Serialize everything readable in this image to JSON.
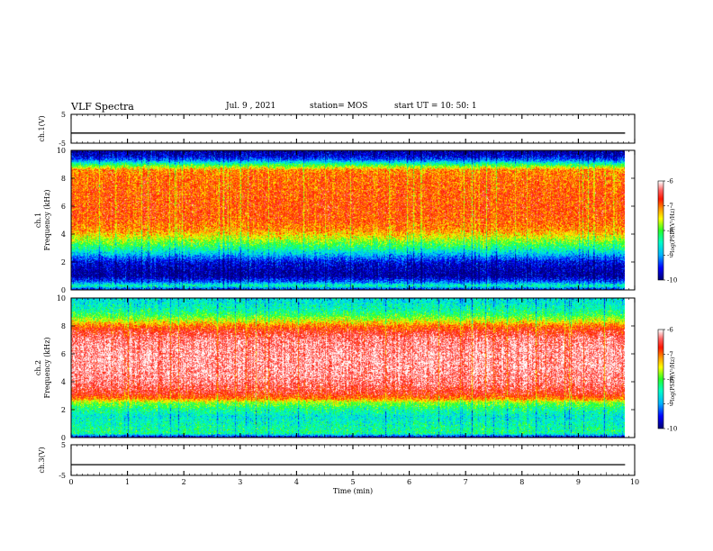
{
  "header": {
    "title": "VLF Spectra",
    "date": "Jul. 9 , 2021",
    "station": "station= MOS",
    "start": "start UT = 10: 50: 1"
  },
  "chart_data": [
    {
      "type": "line",
      "panel": "ch.1(V)",
      "ylabel": "ch.1(V)",
      "yticks": [
        "5",
        "-5"
      ],
      "ylim": [
        -5,
        5
      ],
      "x": [
        0,
        9.83
      ],
      "y": [
        -1.5,
        -1.5
      ],
      "xlim": [
        0,
        10
      ]
    },
    {
      "type": "heatmap",
      "panel": "ch.1 spectrogram",
      "ylabel_line1": "ch.1",
      "ylabel_line2": "Frequency (kHz)",
      "yticks": [
        "0",
        "2",
        "4",
        "6",
        "8",
        "10"
      ],
      "ylim": [
        0,
        10
      ],
      "xlim": [
        0,
        10
      ],
      "x_data_end": 9.83,
      "colorbar": {
        "label": "log(PSD)(V²/Hz)",
        "ticks": [
          "-6",
          "-7",
          "-8",
          "-9",
          "-10"
        ],
        "range": [
          -10,
          -6
        ]
      },
      "profile": {
        "freq_khz": [
          0,
          0.3,
          0.6,
          1.0,
          1.5,
          2.0,
          2.3,
          2.6,
          3.0,
          3.4,
          3.8,
          4.3,
          5.0,
          6.0,
          7.0,
          8.0,
          8.6,
          9.0,
          9.3,
          9.6,
          10.0
        ],
        "log_psd": [
          -9.6,
          -8.4,
          -9.3,
          -9.9,
          -9.8,
          -9.6,
          -9.2,
          -8.8,
          -8.3,
          -7.9,
          -7.5,
          -7.1,
          -6.9,
          -6.85,
          -6.9,
          -6.95,
          -7.1,
          -8.2,
          -9.2,
          -9.7,
          -9.9
        ]
      }
    },
    {
      "type": "heatmap",
      "panel": "ch.2 spectrogram",
      "ylabel_line1": "ch.2",
      "ylabel_line2": "Frequency (kHz)",
      "yticks": [
        "0",
        "2",
        "4",
        "6",
        "8",
        "10"
      ],
      "ylim": [
        0,
        10
      ],
      "xlim": [
        0,
        10
      ],
      "x_data_end": 9.83,
      "colorbar": {
        "label": "log(PSD)(V²/Hz)",
        "ticks": [
          "-6",
          "-7",
          "-8",
          "-9",
          "-10"
        ],
        "range": [
          -10,
          -6
        ]
      },
      "profile": {
        "freq_khz": [
          0,
          0.3,
          0.8,
          1.5,
          2.0,
          2.5,
          2.8,
          3.2,
          4.0,
          5.0,
          6.0,
          7.0,
          7.6,
          8.0,
          8.4,
          8.8,
          9.2,
          9.6,
          10.0
        ],
        "log_psd": [
          -9.8,
          -8.3,
          -8.4,
          -8.6,
          -8.3,
          -7.8,
          -7.0,
          -6.6,
          -6.3,
          -6.2,
          -6.2,
          -6.3,
          -6.6,
          -7.0,
          -7.6,
          -8.1,
          -8.4,
          -8.6,
          -8.7
        ]
      }
    },
    {
      "type": "line",
      "panel": "ch.3(V)",
      "ylabel": "ch.3(V)",
      "yticks": [
        "5",
        "-5"
      ],
      "ylim": [
        -5,
        5
      ],
      "x": [
        0,
        9.83
      ],
      "y": [
        -1.5,
        -1.5
      ],
      "xlim": [
        0,
        10
      ],
      "xlabel": "Time (min)",
      "xticks": [
        "0",
        "1",
        "2",
        "3",
        "4",
        "5",
        "6",
        "7",
        "8",
        "9",
        "10"
      ]
    }
  ]
}
